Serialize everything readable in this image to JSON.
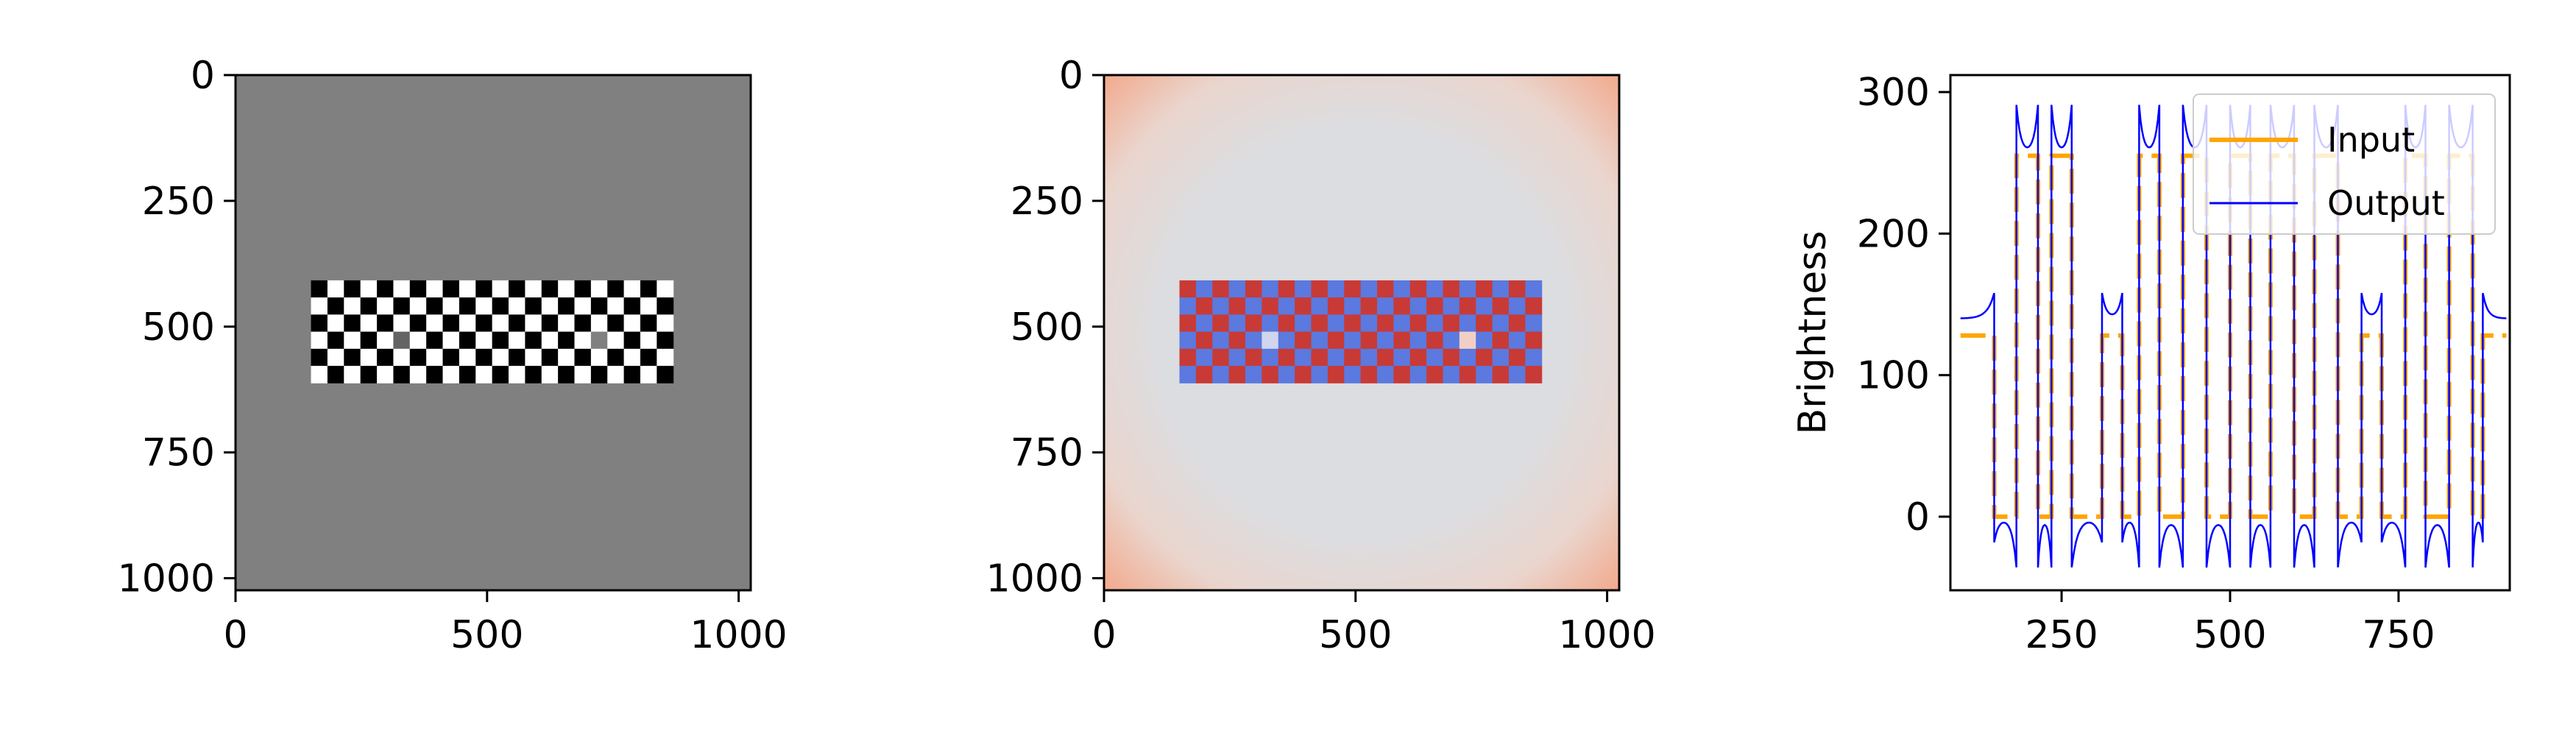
{
  "chart_data": [
    {
      "type": "heatmap",
      "title": "",
      "xlabel": "",
      "ylabel": "",
      "xlim": [
        0,
        1024
      ],
      "ylim": [
        1024,
        0
      ],
      "xticks": [
        0,
        500,
        1000
      ],
      "yticks": [
        0,
        250,
        500,
        750,
        1000
      ],
      "background_value": 128,
      "pattern": {
        "x_range": [
          150,
          870
        ],
        "y_range": [
          408,
          612
        ],
        "cols": 22,
        "rows": 6,
        "levels": [
          0,
          255
        ],
        "gray_patches": [
          {
            "col": 5,
            "row": 3,
            "value": 100
          },
          {
            "col": 17,
            "row": 3,
            "value": 128
          }
        ]
      },
      "colors": {
        "black": "#000000",
        "white": "#ffffff",
        "background": "#808080"
      }
    },
    {
      "type": "heatmap",
      "title": "",
      "xlabel": "",
      "ylabel": "",
      "xlim": [
        0,
        1024
      ],
      "ylim": [
        1024,
        0
      ],
      "xticks": [
        0,
        500,
        1000
      ],
      "yticks": [
        0,
        250,
        500,
        750,
        1000
      ],
      "colormap": "coolwarm",
      "pattern": {
        "x_range": [
          150,
          870
        ],
        "y_range": [
          408,
          612
        ],
        "cols": 22,
        "rows": 6,
        "gray_patches": [
          {
            "col": 5,
            "row": 3,
            "color": "#cfd6ee"
          },
          {
            "col": 17,
            "row": 3,
            "color": "#f2cfc6"
          }
        ]
      },
      "colors": {
        "cool": "#5b79de",
        "warm": "#c83a36",
        "center": "#dcdde0",
        "edge": "#f3a586"
      }
    },
    {
      "type": "line",
      "title": "",
      "xlabel": "",
      "ylabel": "Brightness",
      "xlim": [
        85,
        915
      ],
      "ylim": [
        -52,
        312
      ],
      "xticks": [
        250,
        500,
        750
      ],
      "yticks": [
        0,
        100,
        200,
        300
      ],
      "legend": "top-right",
      "series": [
        {
          "name": "Input",
          "color": "#ffa500",
          "style": "dashed",
          "segments": [
            [
              100,
              150,
              128
            ],
            [
              150,
              183,
              0
            ],
            [
              183,
              265,
              255
            ],
            [
              265,
              310,
              0
            ],
            [
              310,
              345,
              128
            ],
            [
              345,
              363,
              0
            ],
            [
              363,
              660,
              "alt"
            ],
            [
              660,
              700,
              0
            ],
            [
              700,
              725,
              128
            ],
            [
              725,
              755,
              0
            ],
            [
              755,
              765,
              255
            ],
            [
              765,
              840,
              "alt2"
            ],
            [
              840,
              870,
              255
            ],
            [
              870,
              900,
              128
            ]
          ]
        },
        {
          "name": "Output",
          "color": "#0000ff",
          "style": "solid"
        }
      ],
      "input_levels": [
        {
          "x0": 100,
          "x1": 150,
          "y": 128
        },
        {
          "x0": 150,
          "x1": 183,
          "y": 0
        },
        {
          "x0": 183,
          "x1": 215,
          "y": 255
        },
        {
          "x0": 215,
          "x1": 235,
          "y": 0
        },
        {
          "x0": 235,
          "x1": 265,
          "y": 255
        },
        {
          "x0": 265,
          "x1": 310,
          "y": 0
        },
        {
          "x0": 310,
          "x1": 340,
          "y": 128
        },
        {
          "x0": 340,
          "x1": 365,
          "y": 0
        },
        {
          "x0": 365,
          "x1": 395,
          "y": 255
        },
        {
          "x0": 395,
          "x1": 430,
          "y": 0
        },
        {
          "x0": 430,
          "x1": 465,
          "y": 255
        },
        {
          "x0": 465,
          "x1": 500,
          "y": 0
        },
        {
          "x0": 500,
          "x1": 530,
          "y": 255
        },
        {
          "x0": 530,
          "x1": 560,
          "y": 0
        },
        {
          "x0": 560,
          "x1": 595,
          "y": 255
        },
        {
          "x0": 595,
          "x1": 625,
          "y": 0
        },
        {
          "x0": 625,
          "x1": 660,
          "y": 255
        },
        {
          "x0": 660,
          "x1": 695,
          "y": 0
        },
        {
          "x0": 695,
          "x1": 725,
          "y": 128
        },
        {
          "x0": 725,
          "x1": 760,
          "y": 0
        },
        {
          "x0": 760,
          "x1": 790,
          "y": 255
        },
        {
          "x0": 790,
          "x1": 825,
          "y": 0
        },
        {
          "x0": 825,
          "x1": 860,
          "y": 255
        },
        {
          "x0": 860,
          "x1": 875,
          "y": 0
        },
        {
          "x0": 875,
          "x1": 910,
          "y": 128
        }
      ]
    }
  ]
}
